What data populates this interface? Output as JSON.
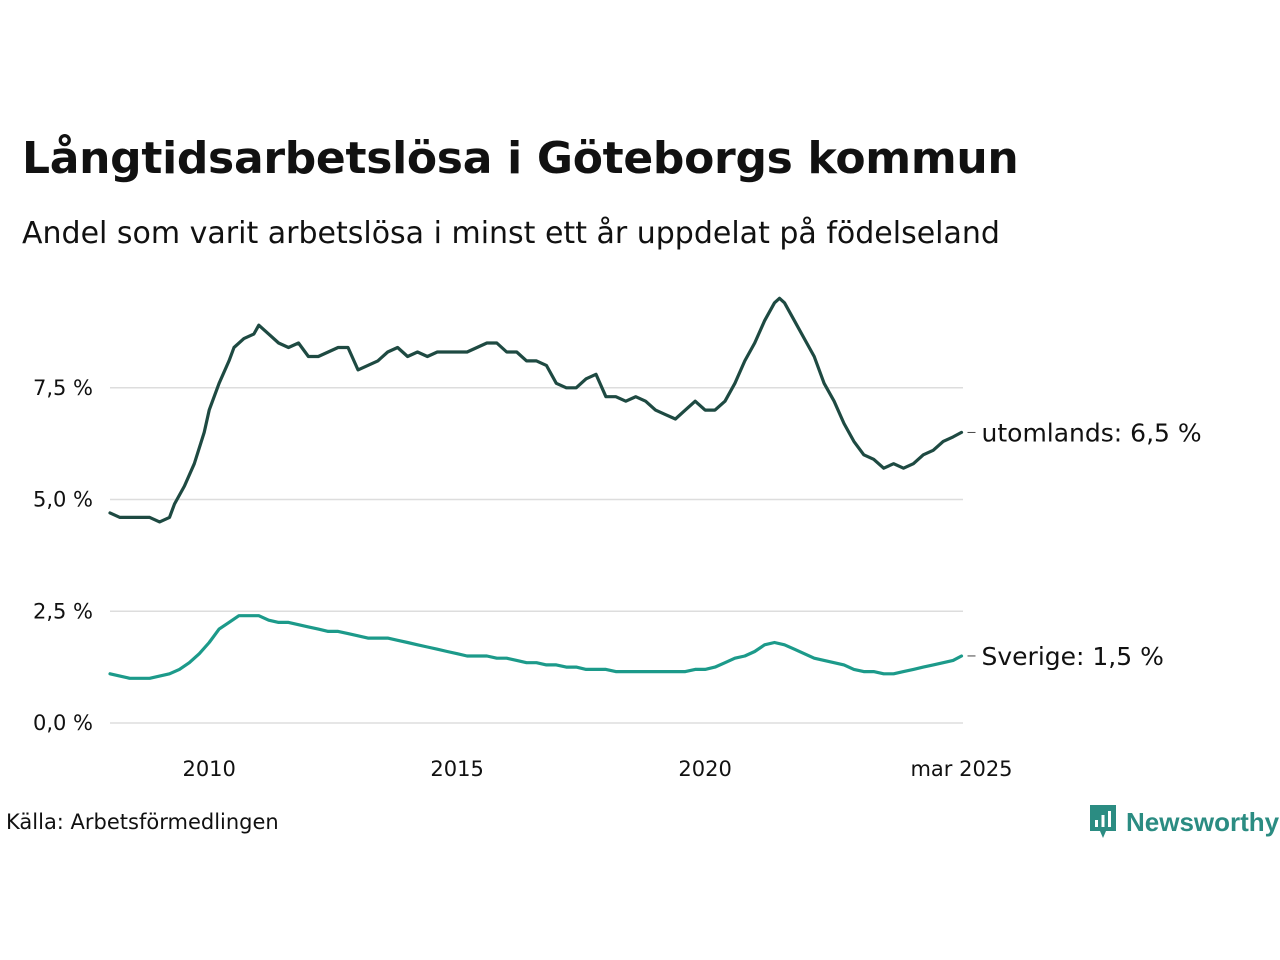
{
  "title": "Långtidsarbetslösa i Göteborgs kommun",
  "subtitle": "Andel som varit arbetslösa i minst ett år uppdelat på födelseland",
  "source": "Källa: Arbetsförmedlingen",
  "logo": {
    "name": "Newsworthy",
    "color": "#2b8c82"
  },
  "chart_data": {
    "type": "line",
    "title": "Långtidsarbetslösa i Göteborgs kommun",
    "subtitle": "Andel som varit arbetslösa i minst ett år uppdelat på födelseland",
    "xlabel": "",
    "ylabel": "",
    "xlim": [
      2008.0,
      2025.2
    ],
    "ylim": [
      0,
      9.5
    ],
    "y_ticks": [
      {
        "value": 0,
        "label": "0,0 %"
      },
      {
        "value": 2.5,
        "label": "2,5 %"
      },
      {
        "value": 5.0,
        "label": "5,0 %"
      },
      {
        "value": 7.5,
        "label": "7,5 %"
      }
    ],
    "x_ticks": [
      {
        "value": 2010,
        "label": "2010"
      },
      {
        "value": 2015,
        "label": "2015"
      },
      {
        "value": 2020,
        "label": "2020"
      },
      {
        "value": 2025.17,
        "label": "mar 2025"
      }
    ],
    "grid": "horizontal",
    "legend": "end-of-line labels",
    "series": [
      {
        "name": "utomlands",
        "end_label": "utomlands: 6,5 %",
        "color": "#1e4a42",
        "x": [
          2008.0,
          2008.2,
          2008.4,
          2008.6,
          2008.8,
          2009.0,
          2009.2,
          2009.3,
          2009.5,
          2009.7,
          2009.9,
          2010.0,
          2010.2,
          2010.4,
          2010.5,
          2010.7,
          2010.9,
          2011.0,
          2011.2,
          2011.4,
          2011.6,
          2011.8,
          2012.0,
          2012.2,
          2012.4,
          2012.6,
          2012.8,
          2013.0,
          2013.2,
          2013.4,
          2013.6,
          2013.8,
          2014.0,
          2014.2,
          2014.4,
          2014.6,
          2014.8,
          2015.0,
          2015.2,
          2015.4,
          2015.6,
          2015.8,
          2016.0,
          2016.2,
          2016.4,
          2016.6,
          2016.8,
          2017.0,
          2017.2,
          2017.4,
          2017.6,
          2017.8,
          2018.0,
          2018.2,
          2018.4,
          2018.6,
          2018.8,
          2019.0,
          2019.2,
          2019.4,
          2019.6,
          2019.8,
          2020.0,
          2020.2,
          2020.4,
          2020.6,
          2020.8,
          2021.0,
          2021.2,
          2021.4,
          2021.5,
          2021.6,
          2021.8,
          2022.0,
          2022.2,
          2022.4,
          2022.6,
          2022.8,
          2023.0,
          2023.2,
          2023.4,
          2023.6,
          2023.8,
          2024.0,
          2024.2,
          2024.4,
          2024.6,
          2024.8,
          2025.0,
          2025.17
        ],
        "values": [
          4.7,
          4.6,
          4.6,
          4.6,
          4.6,
          4.5,
          4.6,
          4.9,
          5.3,
          5.8,
          6.5,
          7.0,
          7.6,
          8.1,
          8.4,
          8.6,
          8.7,
          8.9,
          8.7,
          8.5,
          8.4,
          8.5,
          8.2,
          8.2,
          8.3,
          8.4,
          8.4,
          7.9,
          8.0,
          8.1,
          8.3,
          8.4,
          8.2,
          8.3,
          8.2,
          8.3,
          8.3,
          8.3,
          8.3,
          8.4,
          8.5,
          8.5,
          8.3,
          8.3,
          8.1,
          8.1,
          8.0,
          7.6,
          7.5,
          7.5,
          7.7,
          7.8,
          7.3,
          7.3,
          7.2,
          7.3,
          7.2,
          7.0,
          6.9,
          6.8,
          7.0,
          7.2,
          7.0,
          7.0,
          7.2,
          7.6,
          8.1,
          8.5,
          9.0,
          9.4,
          9.5,
          9.4,
          9.0,
          8.6,
          8.2,
          7.6,
          7.2,
          6.7,
          6.3,
          6.0,
          5.9,
          5.7,
          5.8,
          5.7,
          5.8,
          6.0,
          6.1,
          6.3,
          6.4,
          6.5
        ]
      },
      {
        "name": "Sverige",
        "end_label": "Sverige: 1,5 %",
        "color": "#1c9a8a",
        "x": [
          2008.0,
          2008.2,
          2008.4,
          2008.6,
          2008.8,
          2009.0,
          2009.2,
          2009.4,
          2009.6,
          2009.8,
          2010.0,
          2010.2,
          2010.4,
          2010.6,
          2010.8,
          2011.0,
          2011.2,
          2011.4,
          2011.6,
          2011.8,
          2012.0,
          2012.2,
          2012.4,
          2012.6,
          2012.8,
          2013.0,
          2013.2,
          2013.4,
          2013.6,
          2013.8,
          2014.0,
          2014.2,
          2014.4,
          2014.6,
          2014.8,
          2015.0,
          2015.2,
          2015.4,
          2015.6,
          2015.8,
          2016.0,
          2016.2,
          2016.4,
          2016.6,
          2016.8,
          2017.0,
          2017.2,
          2017.4,
          2017.6,
          2017.8,
          2018.0,
          2018.2,
          2018.4,
          2018.6,
          2018.8,
          2019.0,
          2019.2,
          2019.4,
          2019.6,
          2019.8,
          2020.0,
          2020.2,
          2020.4,
          2020.6,
          2020.8,
          2021.0,
          2021.2,
          2021.4,
          2021.6,
          2021.8,
          2022.0,
          2022.2,
          2022.4,
          2022.6,
          2022.8,
          2023.0,
          2023.2,
          2023.4,
          2023.6,
          2023.8,
          2024.0,
          2024.2,
          2024.4,
          2024.6,
          2024.8,
          2025.0,
          2025.17
        ],
        "values": [
          1.1,
          1.05,
          1.0,
          1.0,
          1.0,
          1.05,
          1.1,
          1.2,
          1.35,
          1.55,
          1.8,
          2.1,
          2.25,
          2.4,
          2.4,
          2.4,
          2.3,
          2.25,
          2.25,
          2.2,
          2.15,
          2.1,
          2.05,
          2.05,
          2.0,
          1.95,
          1.9,
          1.9,
          1.9,
          1.85,
          1.8,
          1.75,
          1.7,
          1.65,
          1.6,
          1.55,
          1.5,
          1.5,
          1.5,
          1.45,
          1.45,
          1.4,
          1.35,
          1.35,
          1.3,
          1.3,
          1.25,
          1.25,
          1.2,
          1.2,
          1.2,
          1.15,
          1.15,
          1.15,
          1.15,
          1.15,
          1.15,
          1.15,
          1.15,
          1.2,
          1.2,
          1.25,
          1.35,
          1.45,
          1.5,
          1.6,
          1.75,
          1.8,
          1.75,
          1.65,
          1.55,
          1.45,
          1.4,
          1.35,
          1.3,
          1.2,
          1.15,
          1.15,
          1.1,
          1.1,
          1.15,
          1.2,
          1.25,
          1.3,
          1.35,
          1.4,
          1.5
        ]
      }
    ]
  }
}
